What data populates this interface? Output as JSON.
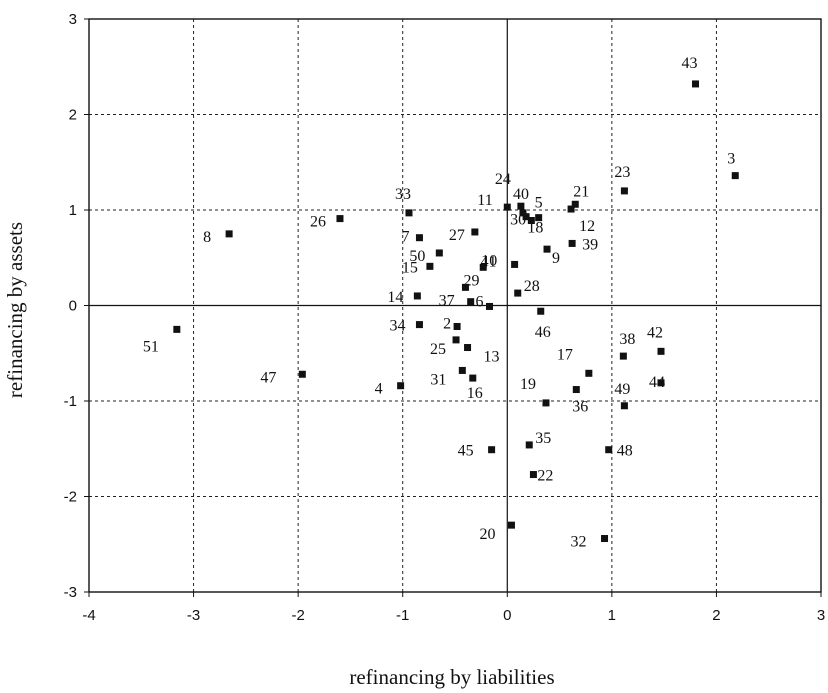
{
  "chart_data": {
    "type": "scatter",
    "xlabel": "refinancing by liabilities",
    "ylabel": "refinancing by assets",
    "xlim": [
      -4,
      3
    ],
    "ylim": [
      -3,
      3
    ],
    "xticks": [
      -4,
      -3,
      -2,
      -1,
      0,
      1,
      2,
      3
    ],
    "yticks": [
      -3,
      -2,
      -1,
      0,
      1,
      2,
      3
    ],
    "grid": true,
    "points": [
      {
        "label": "2",
        "x": -0.48,
        "y": -0.22
      },
      {
        "label": "3",
        "x": 2.18,
        "y": 1.36
      },
      {
        "label": "4",
        "x": -1.02,
        "y": -0.84
      },
      {
        "label": "5",
        "x": 0.3,
        "y": 0.92
      },
      {
        "label": "6",
        "x": -0.17,
        "y": -0.01
      },
      {
        "label": "7",
        "x": -0.84,
        "y": 0.71
      },
      {
        "label": "8",
        "x": -2.66,
        "y": 0.75
      },
      {
        "label": "9",
        "x": 0.38,
        "y": 0.59
      },
      {
        "label": "10",
        "x": -0.23,
        "y": 0.4
      },
      {
        "label": "11",
        "x": 0.0,
        "y": 1.03
      },
      {
        "label": "12",
        "x": 0.61,
        "y": 1.01
      },
      {
        "label": "13",
        "x": -0.38,
        "y": -0.44
      },
      {
        "label": "14",
        "x": -0.86,
        "y": 0.1
      },
      {
        "label": "15",
        "x": -0.74,
        "y": 0.41
      },
      {
        "label": "16",
        "x": -0.33,
        "y": -0.76
      },
      {
        "label": "17",
        "x": 0.78,
        "y": -0.71
      },
      {
        "label": "18",
        "x": 0.23,
        "y": 0.89
      },
      {
        "label": "19",
        "x": 0.37,
        "y": -1.02
      },
      {
        "label": "20",
        "x": 0.04,
        "y": -2.3
      },
      {
        "label": "21",
        "x": 0.65,
        "y": 1.06
      },
      {
        "label": "22",
        "x": 0.25,
        "y": -1.77
      },
      {
        "label": "23",
        "x": 1.12,
        "y": 1.2
      },
      {
        "label": "24",
        "x": 0.13,
        "y": 1.04
      },
      {
        "label": "25",
        "x": -0.49,
        "y": -0.36
      },
      {
        "label": "26",
        "x": -1.6,
        "y": 0.91
      },
      {
        "label": "27",
        "x": -0.31,
        "y": 0.77
      },
      {
        "label": "28",
        "x": 0.1,
        "y": 0.13
      },
      {
        "label": "29",
        "x": -0.4,
        "y": 0.19
      },
      {
        "label": "30",
        "x": 0.18,
        "y": 0.93
      },
      {
        "label": "31",
        "x": -0.43,
        "y": -0.68
      },
      {
        "label": "32",
        "x": 0.93,
        "y": -2.44
      },
      {
        "label": "33",
        "x": -0.94,
        "y": 0.97
      },
      {
        "label": "34",
        "x": -0.84,
        "y": -0.2
      },
      {
        "label": "35",
        "x": 0.21,
        "y": -1.46
      },
      {
        "label": "36",
        "x": 0.66,
        "y": -0.88
      },
      {
        "label": "37",
        "x": -0.35,
        "y": 0.04
      },
      {
        "label": "38",
        "x": 1.11,
        "y": -0.53
      },
      {
        "label": "39",
        "x": 0.62,
        "y": 0.65
      },
      {
        "label": "40",
        "x": 0.15,
        "y": 0.97
      },
      {
        "label": "41",
        "x": 0.07,
        "y": 0.43
      },
      {
        "label": "42",
        "x": 1.47,
        "y": -0.48
      },
      {
        "label": "43",
        "x": 1.8,
        "y": 2.32
      },
      {
        "label": "44",
        "x": 1.47,
        "y": -0.81
      },
      {
        "label": "45",
        "x": -0.15,
        "y": -1.51
      },
      {
        "label": "46",
        "x": 0.32,
        "y": -0.06
      },
      {
        "label": "47",
        "x": -1.96,
        "y": -0.72
      },
      {
        "label": "48",
        "x": 0.97,
        "y": -1.51
      },
      {
        "label": "49",
        "x": 1.12,
        "y": -1.05
      },
      {
        "label": "50",
        "x": -0.65,
        "y": 0.55
      },
      {
        "label": "51",
        "x": -3.16,
        "y": -0.25
      }
    ]
  }
}
